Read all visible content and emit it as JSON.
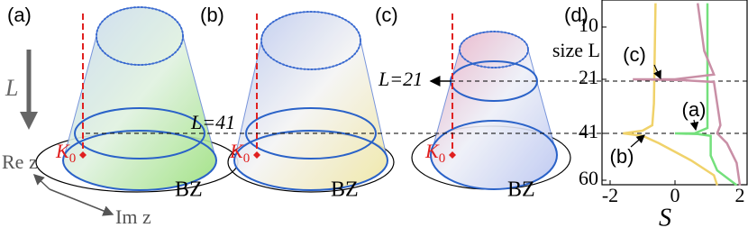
{
  "panels": [
    {
      "label": "(a)",
      "k0": {
        "main": "K",
        "sub": "0"
      },
      "bz": "BZ"
    },
    {
      "label": "(b)",
      "k0": {
        "main": "K",
        "sub": "0"
      },
      "bz": "BZ"
    },
    {
      "label": "(c)",
      "k0": {
        "main": "K",
        "sub": "0"
      },
      "bz": "BZ"
    }
  ],
  "axes_legend": {
    "l": "L",
    "re": "Re z",
    "im": "Im z"
  },
  "cuts": [
    "L=41",
    "L=21"
  ],
  "chart_data": {
    "type": "line",
    "panel_label": "(d)",
    "ylabel": "size L",
    "xlabel": "S",
    "xlim": [
      -2.25,
      2.25
    ],
    "xticks": [
      -2,
      0,
      2
    ],
    "ylim": [
      4,
      62
    ],
    "yticks": [
      10,
      21,
      41,
      60
    ],
    "y_inverted": true,
    "series": [
      {
        "color": "#f0d26a",
        "x": [
          -0.6,
          -0.65,
          -0.7,
          -1.0,
          -1.6,
          -1.0,
          -0.5,
          0.5,
          1.2,
          1.3
        ],
        "values": [
          5,
          30,
          38,
          40,
          41,
          42,
          45,
          52,
          58,
          62
        ]
      },
      {
        "color": "#74e07c",
        "x": [
          1.0,
          1.0,
          1.0,
          0.6,
          0,
          0.7,
          1.1,
          1.1,
          1.3,
          1.9
        ],
        "values": [
          5,
          30,
          39,
          41,
          41,
          41.3,
          42,
          50,
          56,
          62
        ]
      },
      {
        "color": "#c98fa6",
        "x": [
          0.7,
          0.9,
          1.2,
          0,
          -1.3,
          0.2,
          1.2,
          1.3,
          1.4,
          1.3,
          1.6,
          1.9,
          2.0
        ],
        "values": [
          5,
          15,
          20,
          21,
          21,
          21.3,
          22,
          30,
          38,
          41,
          45,
          53,
          62
        ]
      }
    ],
    "annotations": [
      {
        "text": "(c)",
        "series": 2
      },
      {
        "text": "(a)",
        "series": 1
      },
      {
        "text": "(b)",
        "series": 0
      }
    ]
  }
}
